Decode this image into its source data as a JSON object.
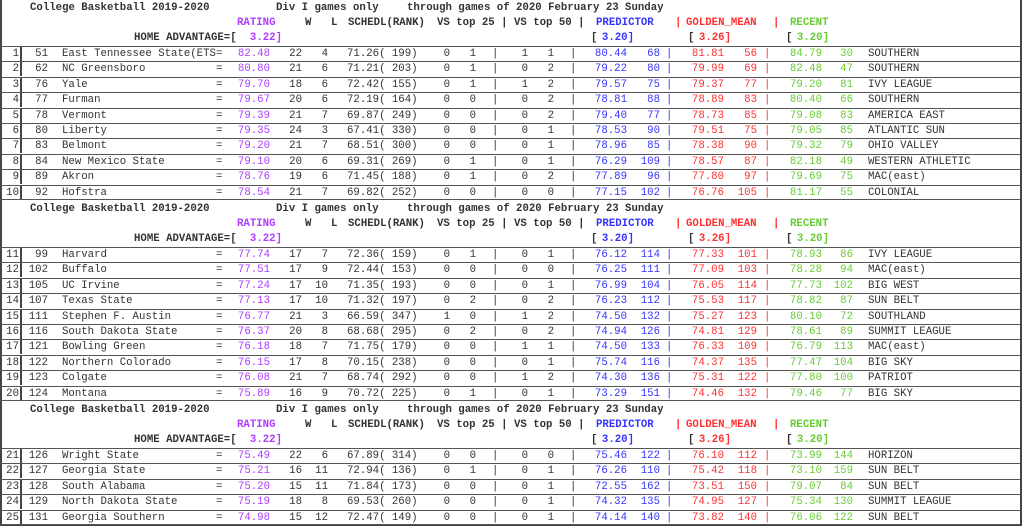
{
  "header": {
    "title": "College Basketball 2019-2020",
    "subtitle": "Div I games only",
    "through": "through games of 2020 February 23 Sunday",
    "col_rating": "RATING",
    "col_w": "W",
    "col_l": "L",
    "col_schedl": "SCHEDL(RANK)",
    "col_vs": "VS top 25 | VS top 50 |",
    "col_predictor": "PREDICTOR",
    "col_golden": "GOLDEN_MEAN",
    "col_recent": "RECENT",
    "pipe": "|",
    "home_label": "HOME ADVANTAGE=[",
    "home_rating": "3.22]",
    "bracket_open": "[",
    "home_predictor": "3.20]",
    "home_golden": "3.26]",
    "home_recent": "3.20]",
    "eq": "="
  },
  "colors": {
    "rating": "#b03cff",
    "predictor": "#3434ff",
    "golden_mean": "#ff3030",
    "recent": "#66cc33"
  },
  "sections": [
    {
      "rows": [
        {
          "n": "1",
          "rank": "51",
          "name": "East Tennessee State(ETS",
          "rating": "82.48",
          "w": "22",
          "l": "4",
          "schedl": "71.26( 199)",
          "t25w": "0",
          "t25l": "1",
          "t50w": "1",
          "t50l": "1",
          "pred": "80.44",
          "pred_rank": "68",
          "gm": "81.81",
          "gm_rank": "56",
          "rec": "84.79",
          "rec_rank": "30",
          "conf": "SOUTHERN"
        },
        {
          "n": "2",
          "rank": "62",
          "name": "NC Greensboro",
          "rating": "80.80",
          "w": "21",
          "l": "6",
          "schedl": "71.21( 203)",
          "t25w": "0",
          "t25l": "1",
          "t50w": "0",
          "t50l": "2",
          "pred": "79.22",
          "pred_rank": "80",
          "gm": "79.99",
          "gm_rank": "69",
          "rec": "82.48",
          "rec_rank": "47",
          "conf": "SOUTHERN"
        },
        {
          "n": "3",
          "rank": "76",
          "name": "Yale",
          "rating": "79.70",
          "w": "18",
          "l": "6",
          "schedl": "72.42( 155)",
          "t25w": "0",
          "t25l": "1",
          "t50w": "1",
          "t50l": "2",
          "pred": "79.57",
          "pred_rank": "75",
          "gm": "79.37",
          "gm_rank": "77",
          "rec": "79.20",
          "rec_rank": "81",
          "conf": "IVY LEAGUE"
        },
        {
          "n": "4",
          "rank": "77",
          "name": "Furman",
          "rating": "79.67",
          "w": "20",
          "l": "6",
          "schedl": "72.19( 164)",
          "t25w": "0",
          "t25l": "0",
          "t50w": "0",
          "t50l": "2",
          "pred": "78.81",
          "pred_rank": "88",
          "gm": "78.89",
          "gm_rank": "83",
          "rec": "80.40",
          "rec_rank": "66",
          "conf": "SOUTHERN"
        },
        {
          "n": "5",
          "rank": "78",
          "name": "Vermont",
          "rating": "79.39",
          "w": "21",
          "l": "7",
          "schedl": "69.87( 249)",
          "t25w": "0",
          "t25l": "0",
          "t50w": "0",
          "t50l": "2",
          "pred": "79.40",
          "pred_rank": "77",
          "gm": "78.73",
          "gm_rank": "85",
          "rec": "79.08",
          "rec_rank": "83",
          "conf": "AMERICA EAST"
        },
        {
          "n": "6",
          "rank": "80",
          "name": "Liberty",
          "rating": "79.35",
          "w": "24",
          "l": "3",
          "schedl": "67.41( 330)",
          "t25w": "0",
          "t25l": "0",
          "t50w": "0",
          "t50l": "1",
          "pred": "78.53",
          "pred_rank": "90",
          "gm": "79.51",
          "gm_rank": "75",
          "rec": "79.05",
          "rec_rank": "85",
          "conf": "ATLANTIC SUN"
        },
        {
          "n": "7",
          "rank": "83",
          "name": "Belmont",
          "rating": "79.20",
          "w": "21",
          "l": "7",
          "schedl": "68.51( 300)",
          "t25w": "0",
          "t25l": "0",
          "t50w": "0",
          "t50l": "1",
          "pred": "78.96",
          "pred_rank": "85",
          "gm": "78.38",
          "gm_rank": "90",
          "rec": "79.32",
          "rec_rank": "79",
          "conf": "OHIO VALLEY"
        },
        {
          "n": "8",
          "rank": "84",
          "name": "New Mexico State",
          "rating": "79.10",
          "w": "20",
          "l": "6",
          "schedl": "69.31( 269)",
          "t25w": "0",
          "t25l": "1",
          "t50w": "0",
          "t50l": "1",
          "pred": "76.29",
          "pred_rank": "109",
          "gm": "78.57",
          "gm_rank": "87",
          "rec": "82.18",
          "rec_rank": "49",
          "conf": "WESTERN ATHLETIC"
        },
        {
          "n": "9",
          "rank": "89",
          "name": "Akron",
          "rating": "78.76",
          "w": "19",
          "l": "6",
          "schedl": "71.45( 188)",
          "t25w": "0",
          "t25l": "1",
          "t50w": "0",
          "t50l": "2",
          "pred": "77.89",
          "pred_rank": "96",
          "gm": "77.80",
          "gm_rank": "97",
          "rec": "79.69",
          "rec_rank": "75",
          "conf": "MAC(east)"
        },
        {
          "n": "10",
          "rank": "92",
          "name": "Hofstra",
          "rating": "78.54",
          "w": "21",
          "l": "7",
          "schedl": "69.82( 252)",
          "t25w": "0",
          "t25l": "0",
          "t50w": "0",
          "t50l": "0",
          "pred": "77.15",
          "pred_rank": "102",
          "gm": "76.76",
          "gm_rank": "105",
          "rec": "81.17",
          "rec_rank": "55",
          "conf": "COLONIAL"
        }
      ]
    },
    {
      "rows": [
        {
          "n": "11",
          "rank": "99",
          "name": "Harvard",
          "rating": "77.74",
          "w": "17",
          "l": "7",
          "schedl": "72.36( 159)",
          "t25w": "0",
          "t25l": "1",
          "t50w": "0",
          "t50l": "1",
          "pred": "76.12",
          "pred_rank": "114",
          "gm": "77.33",
          "gm_rank": "101",
          "rec": "78.93",
          "rec_rank": "86",
          "conf": "IVY LEAGUE"
        },
        {
          "n": "12",
          "rank": "102",
          "name": "Buffalo",
          "rating": "77.51",
          "w": "17",
          "l": "9",
          "schedl": "72.44( 153)",
          "t25w": "0",
          "t25l": "0",
          "t50w": "0",
          "t50l": "0",
          "pred": "76.25",
          "pred_rank": "111",
          "gm": "77.09",
          "gm_rank": "103",
          "rec": "78.28",
          "rec_rank": "94",
          "conf": "MAC(east)"
        },
        {
          "n": "13",
          "rank": "105",
          "name": "UC Irvine",
          "rating": "77.24",
          "w": "17",
          "l": "10",
          "schedl": "71.35( 193)",
          "t25w": "0",
          "t25l": "0",
          "t50w": "0",
          "t50l": "1",
          "pred": "76.99",
          "pred_rank": "104",
          "gm": "76.05",
          "gm_rank": "114",
          "rec": "77.73",
          "rec_rank": "102",
          "conf": "BIG WEST"
        },
        {
          "n": "14",
          "rank": "107",
          "name": "Texas State",
          "rating": "77.13",
          "w": "17",
          "l": "10",
          "schedl": "71.32( 197)",
          "t25w": "0",
          "t25l": "2",
          "t50w": "0",
          "t50l": "2",
          "pred": "76.23",
          "pred_rank": "112",
          "gm": "75.53",
          "gm_rank": "117",
          "rec": "78.82",
          "rec_rank": "87",
          "conf": "SUN BELT"
        },
        {
          "n": "15",
          "rank": "111",
          "name": "Stephen F. Austin",
          "rating": "76.77",
          "w": "21",
          "l": "3",
          "schedl": "66.59( 347)",
          "t25w": "1",
          "t25l": "0",
          "t50w": "1",
          "t50l": "2",
          "pred": "74.50",
          "pred_rank": "132",
          "gm": "75.27",
          "gm_rank": "123",
          "rec": "80.10",
          "rec_rank": "72",
          "conf": "SOUTHLAND"
        },
        {
          "n": "16",
          "rank": "116",
          "name": "South Dakota State",
          "rating": "76.37",
          "w": "20",
          "l": "8",
          "schedl": "68.68( 295)",
          "t25w": "0",
          "t25l": "2",
          "t50w": "0",
          "t50l": "2",
          "pred": "74.94",
          "pred_rank": "126",
          "gm": "74.81",
          "gm_rank": "129",
          "rec": "78.61",
          "rec_rank": "89",
          "conf": "SUMMIT LEAGUE"
        },
        {
          "n": "17",
          "rank": "121",
          "name": "Bowling Green",
          "rating": "76.18",
          "w": "18",
          "l": "7",
          "schedl": "71.75( 179)",
          "t25w": "0",
          "t25l": "0",
          "t50w": "1",
          "t50l": "1",
          "pred": "74.50",
          "pred_rank": "133",
          "gm": "76.33",
          "gm_rank": "109",
          "rec": "76.79",
          "rec_rank": "113",
          "conf": "MAC(east)"
        },
        {
          "n": "18",
          "rank": "122",
          "name": "Northern Colorado",
          "rating": "76.15",
          "w": "17",
          "l": "8",
          "schedl": "70.15( 238)",
          "t25w": "0",
          "t25l": "0",
          "t50w": "0",
          "t50l": "1",
          "pred": "75.74",
          "pred_rank": "116",
          "gm": "74.37",
          "gm_rank": "135",
          "rec": "77.47",
          "rec_rank": "104",
          "conf": "BIG SKY"
        },
        {
          "n": "19",
          "rank": "123",
          "name": "Colgate",
          "rating": "76.08",
          "w": "21",
          "l": "7",
          "schedl": "68.74( 292)",
          "t25w": "0",
          "t25l": "0",
          "t50w": "1",
          "t50l": "2",
          "pred": "74.30",
          "pred_rank": "136",
          "gm": "75.31",
          "gm_rank": "122",
          "rec": "77.80",
          "rec_rank": "100",
          "conf": "PATRIOT"
        },
        {
          "n": "20",
          "rank": "124",
          "name": "Montana",
          "rating": "75.89",
          "w": "16",
          "l": "9",
          "schedl": "70.72( 225)",
          "t25w": "0",
          "t25l": "1",
          "t50w": "0",
          "t50l": "1",
          "pred": "73.29",
          "pred_rank": "151",
          "gm": "74.46",
          "gm_rank": "132",
          "rec": "79.46",
          "rec_rank": "77",
          "conf": "BIG SKY"
        }
      ]
    },
    {
      "rows": [
        {
          "n": "21",
          "rank": "126",
          "name": "Wright State",
          "rating": "75.49",
          "w": "22",
          "l": "6",
          "schedl": "67.89( 314)",
          "t25w": "0",
          "t25l": "0",
          "t50w": "0",
          "t50l": "0",
          "pred": "75.46",
          "pred_rank": "122",
          "gm": "76.10",
          "gm_rank": "112",
          "rec": "73.99",
          "rec_rank": "144",
          "conf": "HORIZON"
        },
        {
          "n": "22",
          "rank": "127",
          "name": "Georgia State",
          "rating": "75.21",
          "w": "16",
          "l": "11",
          "schedl": "72.94( 136)",
          "t25w": "0",
          "t25l": "1",
          "t50w": "0",
          "t50l": "1",
          "pred": "76.26",
          "pred_rank": "110",
          "gm": "75.42",
          "gm_rank": "118",
          "rec": "73.10",
          "rec_rank": "159",
          "conf": "SUN BELT"
        },
        {
          "n": "23",
          "rank": "128",
          "name": "South Alabama",
          "rating": "75.20",
          "w": "15",
          "l": "11",
          "schedl": "71.84( 173)",
          "t25w": "0",
          "t25l": "0",
          "t50w": "0",
          "t50l": "1",
          "pred": "72.55",
          "pred_rank": "162",
          "gm": "73.51",
          "gm_rank": "150",
          "rec": "79.07",
          "rec_rank": "84",
          "conf": "SUN BELT"
        },
        {
          "n": "24",
          "rank": "129",
          "name": "North Dakota State",
          "rating": "75.19",
          "w": "18",
          "l": "8",
          "schedl": "69.53( 260)",
          "t25w": "0",
          "t25l": "0",
          "t50w": "0",
          "t50l": "1",
          "pred": "74.32",
          "pred_rank": "135",
          "gm": "74.95",
          "gm_rank": "127",
          "rec": "75.34",
          "rec_rank": "130",
          "conf": "SUMMIT LEAGUE"
        },
        {
          "n": "25",
          "rank": "131",
          "name": "Georgia Southern",
          "rating": "74.98",
          "w": "15",
          "l": "12",
          "schedl": "72.47( 149)",
          "t25w": "0",
          "t25l": "0",
          "t50w": "0",
          "t50l": "1",
          "pred": "74.14",
          "pred_rank": "140",
          "gm": "73.82",
          "gm_rank": "140",
          "rec": "76.06",
          "rec_rank": "122",
          "conf": "SUN BELT"
        }
      ]
    }
  ]
}
